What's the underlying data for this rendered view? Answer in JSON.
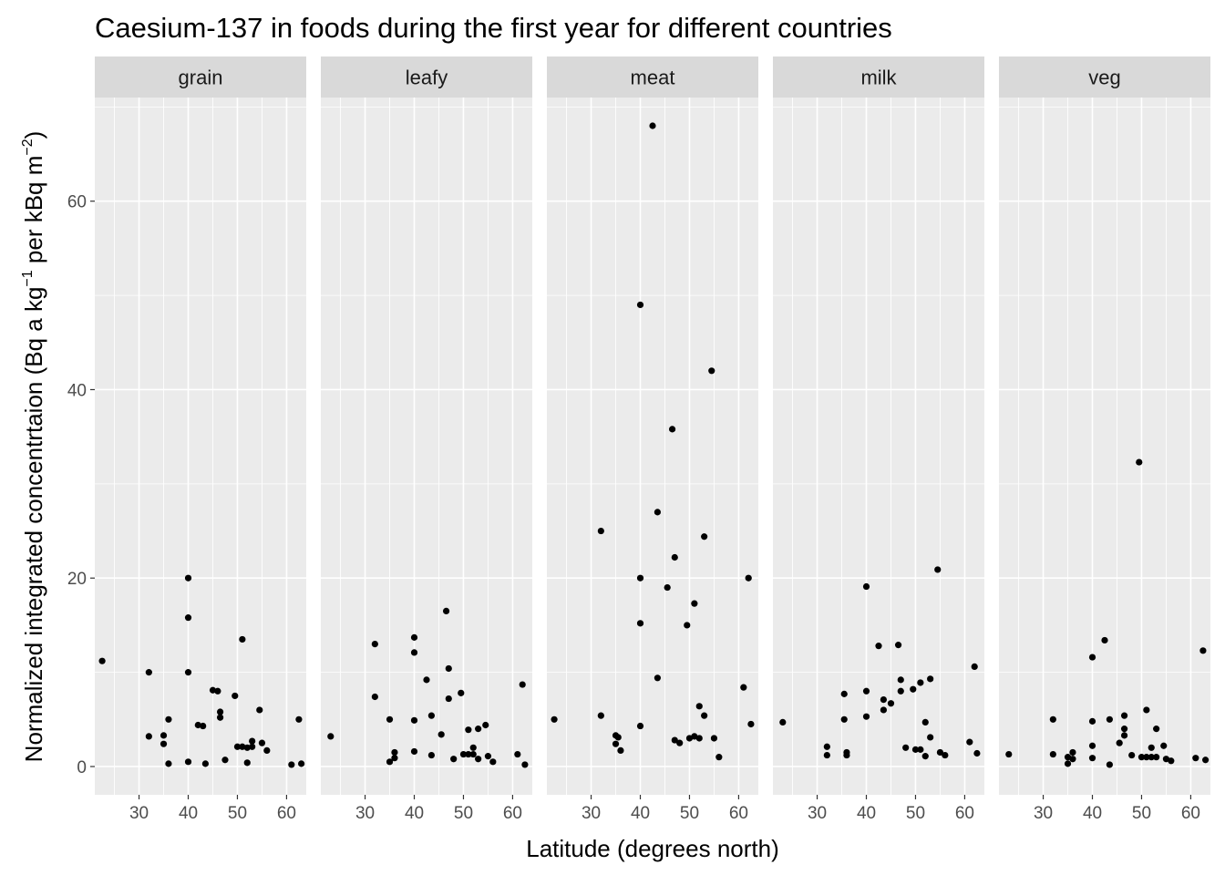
{
  "chart_data": {
    "type": "scatter",
    "facet_by": "food",
    "title": "Caesium-137 in foods during the first year for different countries",
    "xlabel": "Latitude (degrees north)",
    "ylabel_parts": [
      "Normalized integrated concentrtaion (Bq a kg",
      "−1",
      " per kBq m",
      "−2",
      ")"
    ],
    "xlim": [
      21,
      64
    ],
    "ylim": [
      -3,
      71
    ],
    "x_ticks": [
      30,
      40,
      50,
      60
    ],
    "y_ticks": [
      0,
      20,
      40,
      60
    ],
    "grid": true,
    "legend": "none",
    "point_color": "#000000",
    "panel_bg": "#ebebeb",
    "strip_bg": "#d9d9d9",
    "grid_color": "#ffffff",
    "facets": [
      {
        "name": "grain",
        "points": [
          [
            22.5,
            11.2
          ],
          [
            32,
            10
          ],
          [
            32,
            3.2
          ],
          [
            35,
            3.3
          ],
          [
            35,
            2.4
          ],
          [
            36,
            5
          ],
          [
            36,
            0.3
          ],
          [
            40,
            20
          ],
          [
            40,
            15.8
          ],
          [
            40,
            10
          ],
          [
            40,
            0.5
          ],
          [
            42,
            4.4
          ],
          [
            43,
            4.3
          ],
          [
            43.5,
            0.3
          ],
          [
            45,
            8.1
          ],
          [
            46,
            8
          ],
          [
            46.5,
            5.8
          ],
          [
            46.5,
            5.2
          ],
          [
            47.5,
            0.7
          ],
          [
            49.5,
            7.5
          ],
          [
            50,
            2.1
          ],
          [
            51,
            13.5
          ],
          [
            51,
            2.1
          ],
          [
            52,
            2
          ],
          [
            52,
            0.4
          ],
          [
            53,
            2.1
          ],
          [
            53,
            2.7
          ],
          [
            54.5,
            6
          ],
          [
            55,
            2.5
          ],
          [
            56,
            1.7
          ],
          [
            61,
            0.2
          ],
          [
            62.5,
            5
          ],
          [
            63,
            0.3
          ]
        ]
      },
      {
        "name": "leafy",
        "points": [
          [
            23,
            3.2
          ],
          [
            32,
            13
          ],
          [
            32,
            7.4
          ],
          [
            35,
            5
          ],
          [
            35,
            0.5
          ],
          [
            36,
            1.5
          ],
          [
            36,
            0.9
          ],
          [
            40,
            13.7
          ],
          [
            40,
            12.1
          ],
          [
            40,
            4.9
          ],
          [
            40,
            1.6
          ],
          [
            42.5,
            9.2
          ],
          [
            43.5,
            5.4
          ],
          [
            43.5,
            1.2
          ],
          [
            45.5,
            3.4
          ],
          [
            46.5,
            16.5
          ],
          [
            47,
            10.4
          ],
          [
            47,
            7.2
          ],
          [
            48,
            0.8
          ],
          [
            49.5,
            7.8
          ],
          [
            50,
            1.3
          ],
          [
            51,
            3.9
          ],
          [
            51,
            1.3
          ],
          [
            52,
            2
          ],
          [
            52,
            1.3
          ],
          [
            53,
            4
          ],
          [
            53,
            0.8
          ],
          [
            54.5,
            4.4
          ],
          [
            55,
            1.1
          ],
          [
            56,
            0.5
          ],
          [
            61,
            1.3
          ],
          [
            62,
            8.7
          ],
          [
            62.5,
            0.2
          ]
        ]
      },
      {
        "name": "meat",
        "points": [
          [
            22.5,
            5
          ],
          [
            32,
            25
          ],
          [
            32,
            5.4
          ],
          [
            35,
            3.3
          ],
          [
            35,
            2.4
          ],
          [
            35.5,
            3.1
          ],
          [
            36,
            1.7
          ],
          [
            40,
            49
          ],
          [
            40,
            20
          ],
          [
            40,
            15.2
          ],
          [
            40,
            4.3
          ],
          [
            42.5,
            68
          ],
          [
            43.5,
            27
          ],
          [
            43.5,
            9.4
          ],
          [
            45.5,
            19
          ],
          [
            46.5,
            35.8
          ],
          [
            47,
            22.2
          ],
          [
            47,
            2.8
          ],
          [
            48,
            2.5
          ],
          [
            49.5,
            15
          ],
          [
            50,
            3
          ],
          [
            51,
            17.3
          ],
          [
            51,
            3.2
          ],
          [
            52,
            6.4
          ],
          [
            52,
            3
          ],
          [
            53,
            24.4
          ],
          [
            53,
            5.4
          ],
          [
            54.5,
            42
          ],
          [
            55,
            3
          ],
          [
            56,
            1
          ],
          [
            61,
            8.4
          ],
          [
            62,
            20
          ],
          [
            62.5,
            4.5
          ]
        ]
      },
      {
        "name": "milk",
        "points": [
          [
            23,
            4.7
          ],
          [
            32,
            2.1
          ],
          [
            32,
            1.2
          ],
          [
            35.5,
            7.7
          ],
          [
            35.5,
            5
          ],
          [
            36,
            1.5
          ],
          [
            36,
            1.2
          ],
          [
            40,
            19.1
          ],
          [
            40,
            8
          ],
          [
            40,
            5.3
          ],
          [
            42.5,
            12.8
          ],
          [
            43.5,
            7.1
          ],
          [
            43.5,
            6
          ],
          [
            45,
            6.7
          ],
          [
            46.5,
            12.9
          ],
          [
            47,
            9.2
          ],
          [
            47,
            8
          ],
          [
            48,
            2
          ],
          [
            49.5,
            8.2
          ],
          [
            50,
            1.8
          ],
          [
            51,
            8.9
          ],
          [
            51,
            1.8
          ],
          [
            52,
            4.7
          ],
          [
            52,
            1.1
          ],
          [
            53,
            9.3
          ],
          [
            53,
            3.1
          ],
          [
            54.5,
            20.9
          ],
          [
            55,
            1.5
          ],
          [
            56,
            1.2
          ],
          [
            61,
            2.6
          ],
          [
            62,
            10.6
          ],
          [
            62.5,
            1.4
          ]
        ]
      },
      {
        "name": "veg",
        "points": [
          [
            23,
            1.3
          ],
          [
            32,
            5
          ],
          [
            32,
            1.3
          ],
          [
            35,
            1
          ],
          [
            35,
            0.3
          ],
          [
            36,
            1.5
          ],
          [
            36,
            0.8
          ],
          [
            40,
            11.6
          ],
          [
            40,
            4.8
          ],
          [
            40,
            2.2
          ],
          [
            40,
            0.9
          ],
          [
            42.5,
            13.4
          ],
          [
            43.5,
            5
          ],
          [
            43.5,
            0.2
          ],
          [
            45.5,
            2.5
          ],
          [
            46.5,
            5.4
          ],
          [
            46.5,
            4
          ],
          [
            46.5,
            3.3
          ],
          [
            48,
            1.2
          ],
          [
            49.5,
            32.3
          ],
          [
            50,
            1
          ],
          [
            51,
            6
          ],
          [
            51,
            1
          ],
          [
            52,
            2
          ],
          [
            52,
            1
          ],
          [
            53,
            4
          ],
          [
            53,
            1
          ],
          [
            54.5,
            2.2
          ],
          [
            55,
            0.8
          ],
          [
            56,
            0.6
          ],
          [
            61,
            0.9
          ],
          [
            62.5,
            12.3
          ],
          [
            63,
            0.7
          ]
        ]
      }
    ]
  }
}
